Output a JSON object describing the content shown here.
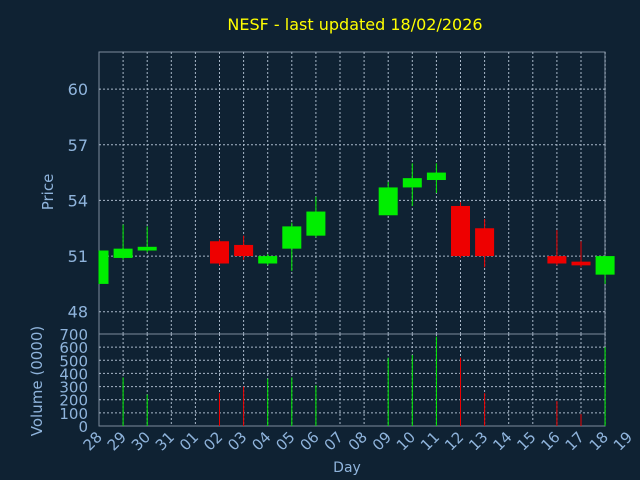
{
  "chart_data": {
    "type": "candlestick",
    "title": "NESF - last updated 18/02/2026",
    "xlabel": "Day",
    "price_ylabel": "Price",
    "volume_ylabel": "Volume (0000)",
    "price_ylim": [
      46.8,
      62
    ],
    "price_ticks": [
      48,
      51,
      54,
      57,
      60
    ],
    "volume_ylim": [
      0,
      700
    ],
    "volume_ticks": [
      0,
      100,
      200,
      300,
      400,
      500,
      600,
      700
    ],
    "x_ticks": [
      "28",
      "29",
      "30",
      "31",
      "01",
      "02",
      "03",
      "04",
      "05",
      "06",
      "07",
      "08",
      "09",
      "10",
      "11",
      "12",
      "13",
      "14",
      "15",
      "16",
      "17",
      "18",
      "19"
    ],
    "grid": true,
    "candles": [
      {
        "day": "28",
        "open": 49.5,
        "close": 51.3,
        "high": 51.3,
        "low": 49.5,
        "volume": 0
      },
      {
        "day": "29",
        "open": 50.9,
        "close": 51.4,
        "high": 52.7,
        "low": 50.8,
        "volume": 370
      },
      {
        "day": "30",
        "open": 51.3,
        "close": 51.5,
        "high": 52.6,
        "low": 51.2,
        "volume": 240
      },
      {
        "day": "02",
        "open": 51.8,
        "close": 50.6,
        "high": 51.9,
        "low": 50.5,
        "volume": 250
      },
      {
        "day": "03",
        "open": 51.6,
        "close": 51.0,
        "high": 52.1,
        "low": 50.8,
        "volume": 300
      },
      {
        "day": "04",
        "open": 50.6,
        "close": 51.0,
        "high": 51.1,
        "low": 50.5,
        "volume": 360
      },
      {
        "day": "05",
        "open": 51.4,
        "close": 52.6,
        "high": 52.8,
        "low": 50.2,
        "volume": 370
      },
      {
        "day": "06",
        "open": 52.1,
        "close": 53.4,
        "high": 54.2,
        "low": 52.0,
        "volume": 310
      },
      {
        "day": "09",
        "open": 53.2,
        "close": 54.7,
        "high": 55.0,
        "low": 53.2,
        "volume": 520
      },
      {
        "day": "10",
        "open": 54.7,
        "close": 55.2,
        "high": 56.0,
        "low": 53.7,
        "volume": 540
      },
      {
        "day": "11",
        "open": 55.1,
        "close": 55.5,
        "high": 56.0,
        "low": 54.4,
        "volume": 680
      },
      {
        "day": "12",
        "open": 53.7,
        "close": 51.0,
        "high": 53.9,
        "low": 50.9,
        "volume": 520
      },
      {
        "day": "13",
        "open": 52.5,
        "close": 51.0,
        "high": 53.0,
        "low": 50.4,
        "volume": 250
      },
      {
        "day": "16",
        "open": 51.0,
        "close": 50.6,
        "high": 52.4,
        "low": 50.5,
        "volume": 190
      },
      {
        "day": "17",
        "open": 50.7,
        "close": 50.5,
        "high": 51.8,
        "low": 50.4,
        "volume": 90
      },
      {
        "day": "18",
        "open": 50.0,
        "close": 51.0,
        "high": 51.0,
        "low": 49.5,
        "volume": 600
      }
    ]
  },
  "colors": {
    "background": "#0f2233",
    "up": "#00ee00",
    "down": "#ee0000",
    "title": "#ffff00",
    "axis_text": "#8fb4dc",
    "grid": "#a9b8c9",
    "frame": "#7c8c9e"
  }
}
